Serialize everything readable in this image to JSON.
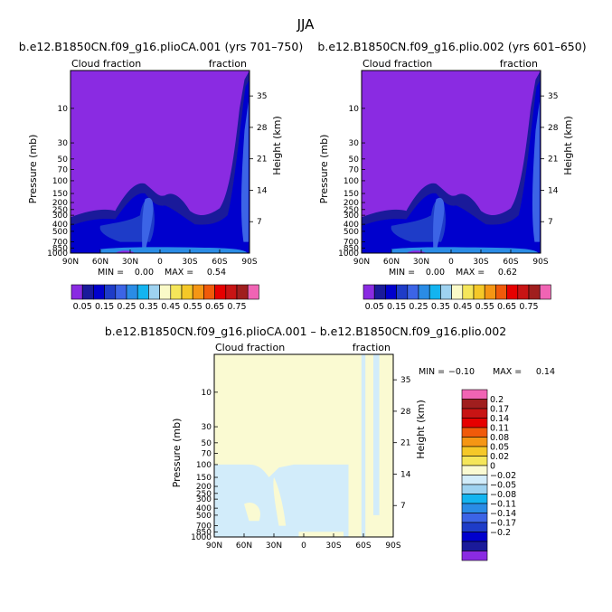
{
  "figure": {
    "season": "JJA",
    "diff_title": "b.e12.B1850CN.f09_g16.plioCA.001 – b.e12.B1850CN.f09_g16.plio.002"
  },
  "chart_data": [
    {
      "type": "heatmap",
      "title": "b.e12.B1850CN.f09_g16.plioCA.001 (yrs 701–750)",
      "left_label": "Cloud fraction",
      "right_label": "fraction",
      "ylabel": "Pressure (mb)",
      "y2label": "Height (km)",
      "x_ticks": [
        "90N",
        "60N",
        "30N",
        "0",
        "30S",
        "60S",
        "90S"
      ],
      "y_ticks": [
        10,
        30,
        50,
        70,
        100,
        150,
        200,
        250,
        300,
        400,
        500,
        700,
        850,
        1000
      ],
      "y2_ticks": [
        35,
        28,
        21,
        14,
        7
      ],
      "ylim": [
        1000,
        3
      ],
      "min_label": "MIN =",
      "min_value": "0.00",
      "max_label": "MAX =",
      "max_value": "0.54",
      "colorbar_labels": [
        "0.05",
        "0.15",
        "0.25",
        "0.35",
        "0.45",
        "0.55",
        "0.65",
        "0.75"
      ]
    },
    {
      "type": "heatmap",
      "title": "b.e12.B1850CN.f09_g16.plio.002 (yrs 601–650)",
      "left_label": "Cloud fraction",
      "right_label": "fraction",
      "ylabel": "Pressure (mb)",
      "y2label": "Height (km)",
      "x_ticks": [
        "90N",
        "60N",
        "30N",
        "0",
        "30S",
        "60S",
        "90S"
      ],
      "y_ticks": [
        10,
        30,
        50,
        70,
        100,
        150,
        200,
        250,
        300,
        400,
        500,
        700,
        850,
        1000
      ],
      "y2_ticks": [
        35,
        28,
        21,
        14,
        7
      ],
      "ylim": [
        1000,
        3
      ],
      "min_label": "MIN =",
      "min_value": "0.00",
      "max_label": "MAX =",
      "max_value": "0.62",
      "colorbar_labels": [
        "0.05",
        "0.15",
        "0.25",
        "0.35",
        "0.45",
        "0.55",
        "0.65",
        "0.75"
      ]
    },
    {
      "type": "heatmap",
      "title": "",
      "left_label": "Cloud fraction",
      "right_label": "fraction",
      "ylabel": "Pressure (mb)",
      "y2label": "Height (km)",
      "x_ticks": [
        "90N",
        "60N",
        "30N",
        "0",
        "30S",
        "60S",
        "90S"
      ],
      "y_ticks": [
        10,
        30,
        50,
        70,
        100,
        150,
        200,
        250,
        300,
        400,
        500,
        700,
        850,
        1000
      ],
      "y2_ticks": [
        35,
        28,
        21,
        14,
        7
      ],
      "ylim": [
        1000,
        3
      ],
      "min_label": "MIN =",
      "min_value": "−0.10",
      "max_label": "MAX =",
      "max_value": "0.14",
      "colorbar_labels": [
        "0.2",
        "0.17",
        "0.14",
        "0.11",
        "0.08",
        "0.05",
        "0.02",
        "0",
        "−0.02",
        "−0.05",
        "−0.08",
        "−0.11",
        "−0.14",
        "−0.17",
        "−0.2"
      ]
    }
  ],
  "colors": {
    "cloud_scale": [
      "#8a2be2",
      "#1a1a9a",
      "#0000cd",
      "#1e3cc8",
      "#3c64e6",
      "#2a8ce6",
      "#14b4f0",
      "#9ed2f0",
      "#fafac8",
      "#f5e65a",
      "#f5c828",
      "#f59614",
      "#f05a0a",
      "#e60000",
      "#c81414",
      "#a01e1e",
      "#f064b4"
    ],
    "diff_scale": [
      "#8a2be2",
      "#1a1a9a",
      "#0000cd",
      "#1e3cc8",
      "#3c64e6",
      "#2a8ce6",
      "#14b4f0",
      "#9ed2f0",
      "#d2ecfa",
      "#fafad2",
      "#f5e65a",
      "#f5c828",
      "#f59614",
      "#f05a0a",
      "#e60000",
      "#c81414",
      "#a01e1e",
      "#f064b4"
    ],
    "background_field": "#8a2be2",
    "diff_neg": "#d2ecfa",
    "diff_pos": "#fafad2"
  }
}
